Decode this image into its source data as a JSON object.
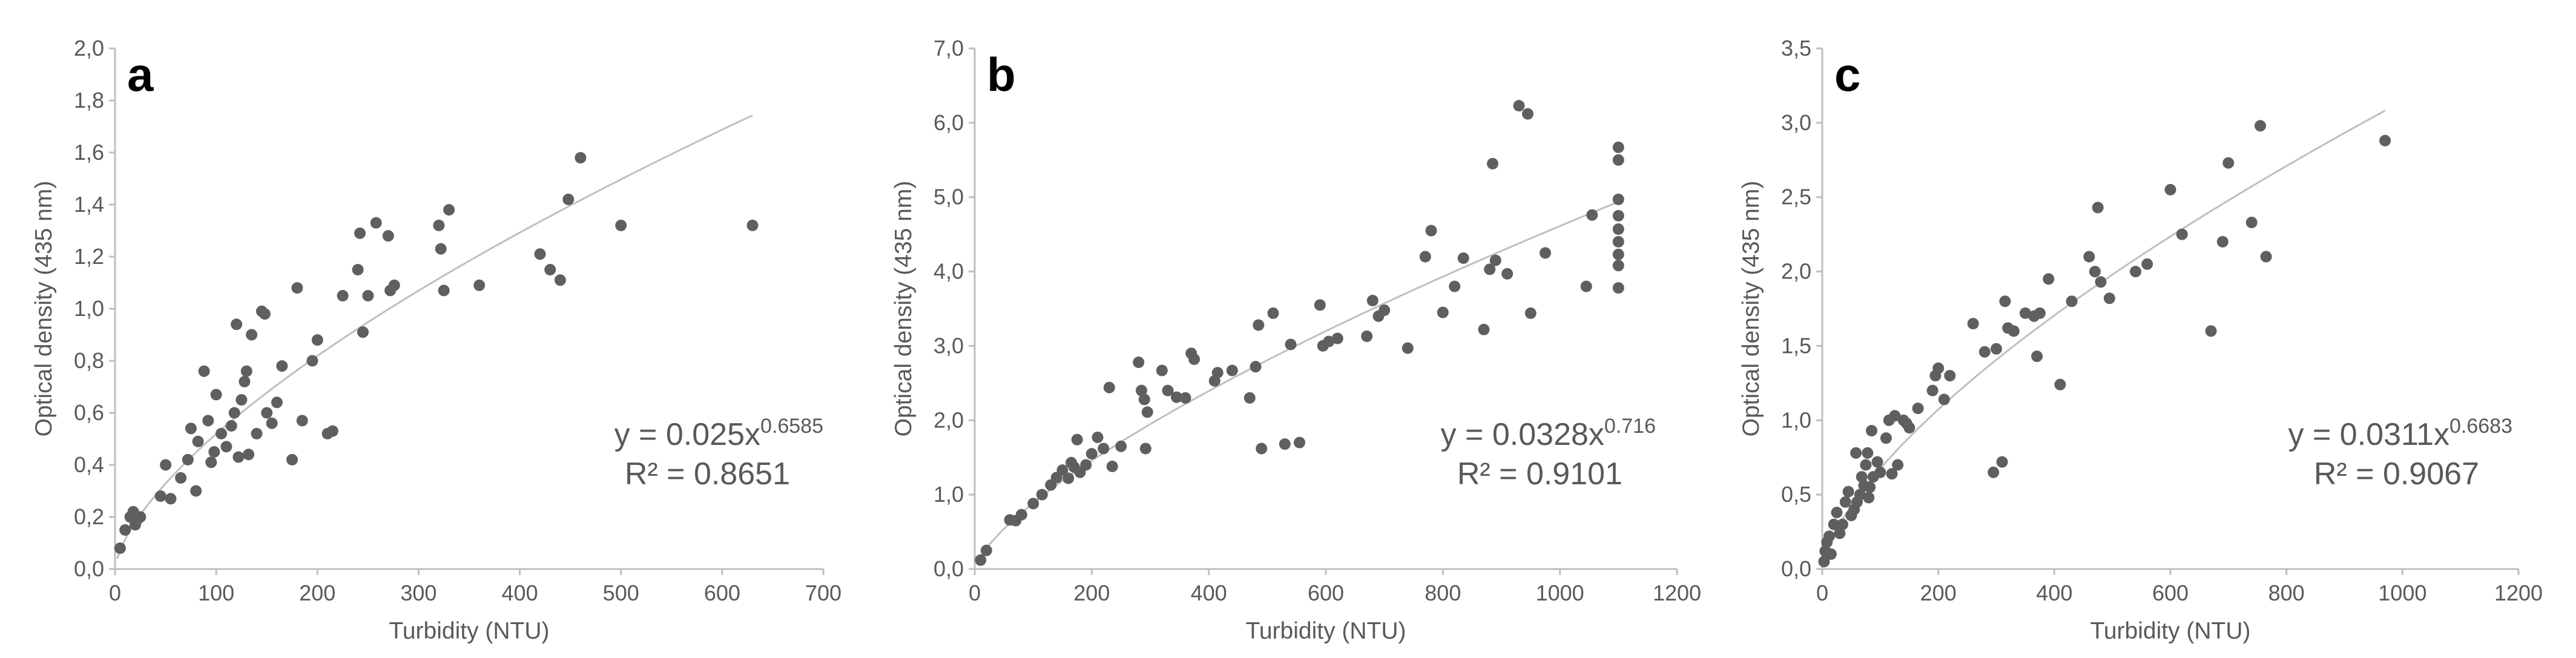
{
  "chart_data": [
    {
      "type": "scatter",
      "panel": "a",
      "xlabel": "Turbidity (NTU)",
      "ylabel": "Optical density (435 nm)",
      "xlim": [
        0,
        700
      ],
      "ylim": [
        0,
        2.0
      ],
      "xticks": [
        "0",
        "100",
        "200",
        "300",
        "400",
        "500",
        "600",
        "700"
      ],
      "yticks": [
        "0,0",
        "0,2",
        "0,4",
        "0,6",
        "0,8",
        "1,0",
        "1,2",
        "1,4",
        "1,6",
        "1,8",
        "2,0"
      ],
      "trendline": {
        "type": "power",
        "a": 0.025,
        "b": 0.6585,
        "x_range": [
          2,
          630
        ]
      },
      "equation": {
        "base": "y = 0.025x",
        "exp": "0.6585",
        "r2": "R² = 0.8651"
      },
      "points": [
        [
          5,
          0.08
        ],
        [
          10,
          0.15
        ],
        [
          15,
          0.2
        ],
        [
          18,
          0.22
        ],
        [
          20,
          0.17
        ],
        [
          22,
          0.19
        ],
        [
          25,
          0.2
        ],
        [
          45,
          0.28
        ],
        [
          50,
          0.4
        ],
        [
          55,
          0.27
        ],
        [
          65,
          0.35
        ],
        [
          72,
          0.42
        ],
        [
          75,
          0.54
        ],
        [
          80,
          0.3
        ],
        [
          82,
          0.49
        ],
        [
          88,
          0.76
        ],
        [
          92,
          0.57
        ],
        [
          95,
          0.41
        ],
        [
          98,
          0.45
        ],
        [
          100,
          0.67
        ],
        [
          105,
          0.52
        ],
        [
          110,
          0.47
        ],
        [
          115,
          0.55
        ],
        [
          118,
          0.6
        ],
        [
          120,
          0.94
        ],
        [
          122,
          0.43
        ],
        [
          125,
          0.65
        ],
        [
          128,
          0.72
        ],
        [
          130,
          0.76
        ],
        [
          132,
          0.44
        ],
        [
          135,
          0.9
        ],
        [
          140,
          0.52
        ],
        [
          145,
          0.99
        ],
        [
          148,
          0.98
        ],
        [
          150,
          0.6
        ],
        [
          155,
          0.56
        ],
        [
          160,
          0.64
        ],
        [
          165,
          0.78
        ],
        [
          175,
          0.42
        ],
        [
          180,
          1.08
        ],
        [
          185,
          0.57
        ],
        [
          195,
          0.8
        ],
        [
          200,
          0.88
        ],
        [
          210,
          0.52
        ],
        [
          215,
          0.53
        ],
        [
          225,
          1.05
        ],
        [
          240,
          1.15
        ],
        [
          242,
          1.29
        ],
        [
          245,
          0.91
        ],
        [
          250,
          1.05
        ],
        [
          258,
          1.33
        ],
        [
          270,
          1.28
        ],
        [
          272,
          1.07
        ],
        [
          276,
          1.09
        ],
        [
          320,
          1.32
        ],
        [
          322,
          1.23
        ],
        [
          325,
          1.07
        ],
        [
          330,
          1.38
        ],
        [
          360,
          1.09
        ],
        [
          420,
          1.21
        ],
        [
          430,
          1.15
        ],
        [
          440,
          1.11
        ],
        [
          448,
          1.42
        ],
        [
          460,
          1.58
        ],
        [
          500,
          1.32
        ],
        [
          630,
          1.32
        ]
      ]
    },
    {
      "type": "scatter",
      "panel": "b",
      "xlabel": "Turbidity (NTU)",
      "ylabel": "Optical density (435 nm)",
      "xlim": [
        0,
        1200
      ],
      "ylim": [
        0,
        7.0
      ],
      "xticks": [
        "0",
        "200",
        "400",
        "600",
        "800",
        "1000",
        "1200"
      ],
      "yticks": [
        "0,0",
        "1,0",
        "2,0",
        "3,0",
        "4,0",
        "5,0",
        "6,0",
        "7,0"
      ],
      "trendline": {
        "type": "power",
        "a": 0.0328,
        "b": 0.716,
        "x_range": [
          5,
          1100
        ]
      },
      "equation": {
        "base": "y = 0.0328x",
        "exp": "0.716",
        "r2": "R² = 0.9101"
      },
      "points": [
        [
          10,
          0.12
        ],
        [
          20,
          0.25
        ],
        [
          60,
          0.66
        ],
        [
          70,
          0.65
        ],
        [
          80,
          0.73
        ],
        [
          100,
          0.88
        ],
        [
          115,
          1.0
        ],
        [
          130,
          1.13
        ],
        [
          140,
          1.23
        ],
        [
          150,
          1.33
        ],
        [
          160,
          1.22
        ],
        [
          165,
          1.43
        ],
        [
          170,
          1.37
        ],
        [
          175,
          1.74
        ],
        [
          180,
          1.3
        ],
        [
          190,
          1.4
        ],
        [
          200,
          1.55
        ],
        [
          210,
          1.77
        ],
        [
          220,
          1.62
        ],
        [
          230,
          2.44
        ],
        [
          235,
          1.38
        ],
        [
          250,
          1.65
        ],
        [
          280,
          2.78
        ],
        [
          285,
          2.4
        ],
        [
          290,
          2.28
        ],
        [
          292,
          1.62
        ],
        [
          295,
          2.11
        ],
        [
          320,
          2.67
        ],
        [
          330,
          2.4
        ],
        [
          345,
          2.31
        ],
        [
          360,
          2.3
        ],
        [
          370,
          2.9
        ],
        [
          375,
          2.82
        ],
        [
          410,
          2.53
        ],
        [
          415,
          2.64
        ],
        [
          440,
          2.67
        ],
        [
          470,
          2.3
        ],
        [
          480,
          2.72
        ],
        [
          485,
          3.28
        ],
        [
          490,
          1.62
        ],
        [
          510,
          3.44
        ],
        [
          530,
          1.68
        ],
        [
          540,
          3.02
        ],
        [
          555,
          1.7
        ],
        [
          590,
          3.55
        ],
        [
          595,
          3.0
        ],
        [
          605,
          3.06
        ],
        [
          620,
          3.1
        ],
        [
          670,
          3.13
        ],
        [
          680,
          3.61
        ],
        [
          690,
          3.4
        ],
        [
          700,
          3.48
        ],
        [
          740,
          2.97
        ],
        [
          770,
          4.2
        ],
        [
          780,
          4.55
        ],
        [
          800,
          3.45
        ],
        [
          820,
          3.8
        ],
        [
          835,
          4.18
        ],
        [
          870,
          3.22
        ],
        [
          880,
          4.03
        ],
        [
          885,
          5.45
        ],
        [
          890,
          4.15
        ],
        [
          910,
          3.97
        ],
        [
          930,
          6.23
        ],
        [
          945,
          6.12
        ],
        [
          950,
          3.44
        ],
        [
          975,
          4.25
        ],
        [
          1045,
          3.8
        ],
        [
          1055,
          4.76
        ],
        [
          1100,
          5.67
        ],
        [
          1100,
          5.5
        ],
        [
          1100,
          4.97
        ],
        [
          1100,
          4.75
        ],
        [
          1100,
          4.57
        ],
        [
          1100,
          4.4
        ],
        [
          1100,
          4.23
        ],
        [
          1100,
          4.08
        ],
        [
          1100,
          3.78
        ]
      ]
    },
    {
      "type": "scatter",
      "panel": "c",
      "xlabel": "Turbidity (NTU)",
      "ylabel": "Optical density (435 nm)",
      "xlim": [
        0,
        1200
      ],
      "ylim": [
        0,
        3.5
      ],
      "xticks": [
        "0",
        "200",
        "400",
        "600",
        "800",
        "1000",
        "1200"
      ],
      "yticks": [
        "0,0",
        "0,5",
        "1,0",
        "1,5",
        "2,0",
        "2,5",
        "3,0",
        "3,5"
      ],
      "trendline": {
        "type": "power",
        "a": 0.0311,
        "b": 0.6683,
        "x_range": [
          2,
          970
        ]
      },
      "equation": {
        "base": "y = 0.0311x",
        "exp": "0.6683",
        "r2": "R² = 0.9067"
      },
      "points": [
        [
          3,
          0.05
        ],
        [
          5,
          0.12
        ],
        [
          8,
          0.18
        ],
        [
          12,
          0.22
        ],
        [
          15,
          0.1
        ],
        [
          20,
          0.3
        ],
        [
          25,
          0.38
        ],
        [
          30,
          0.24
        ],
        [
          35,
          0.3
        ],
        [
          40,
          0.45
        ],
        [
          45,
          0.52
        ],
        [
          50,
          0.36
        ],
        [
          55,
          0.4
        ],
        [
          58,
          0.78
        ],
        [
          60,
          0.45
        ],
        [
          65,
          0.5
        ],
        [
          68,
          0.62
        ],
        [
          72,
          0.56
        ],
        [
          75,
          0.7
        ],
        [
          78,
          0.78
        ],
        [
          80,
          0.48
        ],
        [
          82,
          0.55
        ],
        [
          85,
          0.93
        ],
        [
          88,
          0.62
        ],
        [
          95,
          0.72
        ],
        [
          100,
          0.65
        ],
        [
          110,
          0.88
        ],
        [
          115,
          1.0
        ],
        [
          120,
          0.64
        ],
        [
          125,
          1.03
        ],
        [
          130,
          0.7
        ],
        [
          140,
          1.0
        ],
        [
          145,
          0.98
        ],
        [
          150,
          0.95
        ],
        [
          165,
          1.08
        ],
        [
          190,
          1.2
        ],
        [
          195,
          1.3
        ],
        [
          200,
          1.35
        ],
        [
          210,
          1.14
        ],
        [
          220,
          1.3
        ],
        [
          260,
          1.65
        ],
        [
          280,
          1.46
        ],
        [
          295,
          0.65
        ],
        [
          300,
          1.48
        ],
        [
          310,
          0.72
        ],
        [
          315,
          1.8
        ],
        [
          320,
          1.62
        ],
        [
          330,
          1.6
        ],
        [
          350,
          1.72
        ],
        [
          365,
          1.7
        ],
        [
          370,
          1.43
        ],
        [
          375,
          1.72
        ],
        [
          390,
          1.95
        ],
        [
          410,
          1.24
        ],
        [
          430,
          1.8
        ],
        [
          460,
          2.1
        ],
        [
          470,
          2.0
        ],
        [
          475,
          2.43
        ],
        [
          480,
          1.93
        ],
        [
          495,
          1.82
        ],
        [
          540,
          2.0
        ],
        [
          560,
          2.05
        ],
        [
          600,
          2.55
        ],
        [
          620,
          2.25
        ],
        [
          670,
          1.6
        ],
        [
          690,
          2.2
        ],
        [
          700,
          2.73
        ],
        [
          740,
          2.33
        ],
        [
          755,
          2.98
        ],
        [
          765,
          2.1
        ],
        [
          970,
          2.88
        ]
      ]
    }
  ]
}
